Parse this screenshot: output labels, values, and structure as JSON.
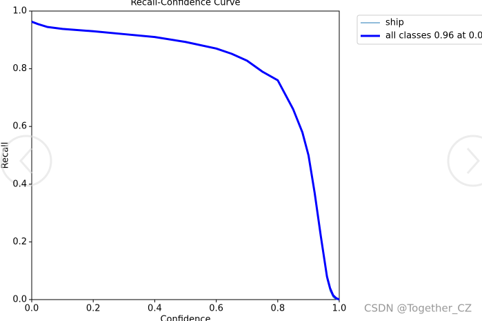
{
  "chart_data": {
    "type": "line",
    "title": "Recall-Confidence Curve",
    "xlabel": "Confidence",
    "ylabel": "Recall",
    "x": [
      0,
      0.02,
      0.05,
      0.1,
      0.2,
      0.3,
      0.4,
      0.5,
      0.6,
      0.65,
      0.7,
      0.75,
      0.8,
      0.85,
      0.88,
      0.9,
      0.92,
      0.94,
      0.95,
      0.96,
      0.97,
      0.98,
      0.99,
      1.0
    ],
    "series": [
      {
        "name": "ship",
        "color": "#1f77b4",
        "linewidth": 1,
        "values": [
          0.963,
          0.955,
          0.945,
          0.938,
          0.93,
          0.92,
          0.91,
          0.893,
          0.87,
          0.852,
          0.828,
          0.79,
          0.76,
          0.66,
          0.58,
          0.5,
          0.37,
          0.22,
          0.14,
          0.07,
          0.03,
          0.008,
          0,
          0
        ]
      },
      {
        "name": "all classes 0.96 at 0.0",
        "color": "#0000ff",
        "linewidth": 3,
        "values": [
          0.963,
          0.955,
          0.945,
          0.938,
          0.93,
          0.92,
          0.91,
          0.893,
          0.87,
          0.852,
          0.828,
          0.79,
          0.76,
          0.66,
          0.58,
          0.5,
          0.37,
          0.22,
          0.15,
          0.08,
          0.04,
          0.015,
          0.005,
          0
        ]
      }
    ],
    "xlim": [
      0,
      1
    ],
    "ylim": [
      0,
      1
    ],
    "xticks": [
      {
        "value": 0,
        "label": "0.0"
      },
      0.2,
      0.4,
      0.6,
      0.8,
      {
        "value": 1,
        "label": "1.0"
      }
    ],
    "yticks": [
      {
        "value": 0,
        "label": "0.0"
      },
      0.2,
      0.4,
      0.6,
      0.8,
      {
        "value": 1,
        "label": "1.0"
      }
    ],
    "grid": false,
    "legend": "outside-right"
  },
  "watermark": "CSDN @Together_CZ"
}
